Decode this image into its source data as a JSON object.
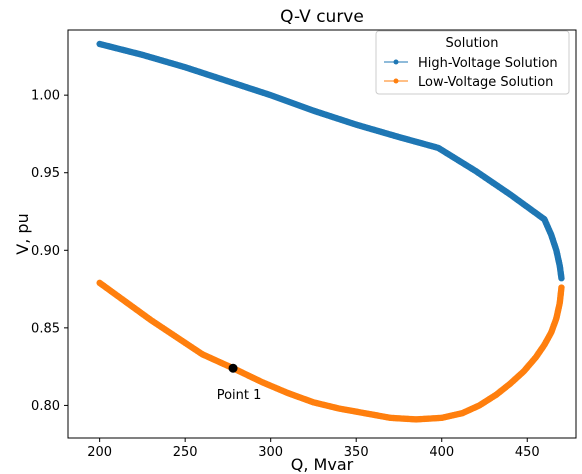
{
  "chart_data": {
    "type": "scatter",
    "title": "Q-V curve",
    "xlabel": "Q, Mvar",
    "ylabel": "V, pu",
    "xlim": [
      181.5,
      478.5
    ],
    "ylim": [
      0.779,
      1.042
    ],
    "xticks": [
      200,
      250,
      300,
      350,
      400,
      450
    ],
    "yticks": [
      0.8,
      0.85,
      0.9,
      0.95,
      1.0
    ],
    "xtick_labels": [
      "200",
      "250",
      "300",
      "350",
      "400",
      "450"
    ],
    "ytick_labels": [
      "0.80",
      "0.85",
      "0.90",
      "0.95",
      "1.00"
    ],
    "grid": false,
    "legend": {
      "title": "Solution",
      "placement": "top-right"
    },
    "series": [
      {
        "name": "High-Voltage Solution",
        "color": "#1f77b4",
        "x": [
          200,
          225,
          250,
          275,
          300,
          325,
          350,
          375,
          398,
          420,
          440,
          460,
          464,
          467,
          469,
          470
        ],
        "y": [
          1.033,
          1.026,
          1.018,
          1.009,
          1.0,
          0.99,
          0.981,
          0.973,
          0.966,
          0.951,
          0.936,
          0.92,
          0.91,
          0.9,
          0.89,
          0.882
        ]
      },
      {
        "name": "Low-Voltage Solution",
        "color": "#ff7f0e",
        "x": [
          200,
          215,
          230,
          245,
          260,
          278,
          295,
          310,
          325,
          340,
          355,
          370,
          385,
          400,
          412,
          422,
          432,
          440,
          448,
          455,
          460,
          464,
          467,
          469,
          470
        ],
        "y": [
          0.879,
          0.867,
          0.855,
          0.844,
          0.833,
          0.824,
          0.815,
          0.808,
          0.802,
          0.798,
          0.795,
          0.792,
          0.791,
          0.792,
          0.795,
          0.8,
          0.807,
          0.814,
          0.822,
          0.831,
          0.839,
          0.847,
          0.856,
          0.866,
          0.876
        ]
      }
    ],
    "annotations": [
      {
        "label": "Point 1",
        "x": 278,
        "y": 0.824,
        "color": "#000000"
      }
    ]
  }
}
